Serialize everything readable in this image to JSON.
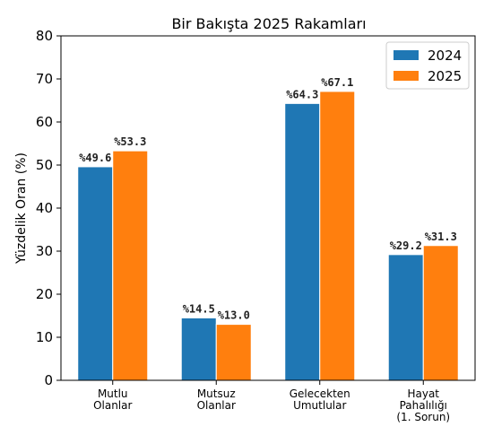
{
  "chart_data": {
    "type": "bar",
    "title": "Bir Bakışta 2025 Rakamları",
    "xlabel": "",
    "ylabel": "Yüzdelik Oran (%)",
    "ylim": [
      0,
      80
    ],
    "yticks": [
      0,
      10,
      20,
      30,
      40,
      50,
      60,
      70,
      80
    ],
    "grid": false,
    "legend_position": "top-right",
    "categories": [
      [
        "Mutlu",
        "Olanlar"
      ],
      [
        "Mutsuz",
        "Olanlar"
      ],
      [
        "Gelecekten",
        "Umutlular"
      ],
      [
        "Hayat",
        "Pahalılığı",
        "(1. Sorun)"
      ]
    ],
    "series": [
      {
        "name": "2024",
        "color": "#1f77b4",
        "values": [
          49.6,
          14.5,
          64.3,
          29.2
        ],
        "labels": [
          "%49.6",
          "%14.5",
          "%64.3",
          "%29.2"
        ]
      },
      {
        "name": "2025",
        "color": "#ff7f0e",
        "values": [
          53.3,
          13.0,
          67.1,
          31.3
        ],
        "labels": [
          "%53.3",
          "%13.0",
          "%67.1",
          "%31.3"
        ]
      }
    ]
  }
}
